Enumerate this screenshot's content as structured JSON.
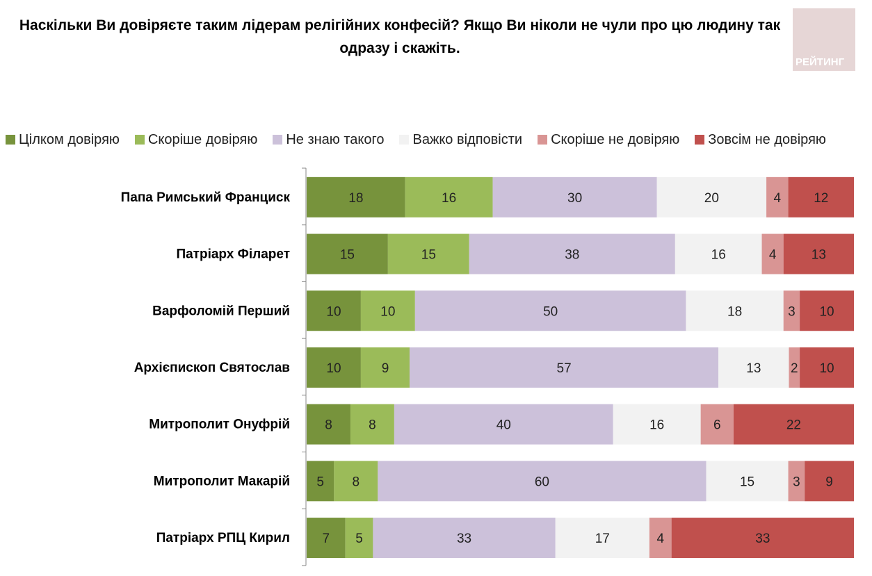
{
  "title": "Наскільки Ви довіряєте таким лідерам релігійних конфесій? Якщо Ви ніколи не чули про цю людину так одразу і скажіть.",
  "logo_text": "РЕЙТИНГ",
  "chart_data": {
    "type": "bar",
    "orientation": "horizontal",
    "stacked": true,
    "title": "Наскільки Ви довіряєте таким лідерам релігійних конфесій? Якщо Ви ніколи не чули про цю людину так одразу і скажіть.",
    "legend_position": "top",
    "categories": [
      "Папа Римський  Франциск",
      "Патріарх Філарет",
      "Варфоломій Перший",
      "Архієпископ Святослав",
      "Митрополит Онуфрій",
      "Митрополит Макарій",
      "Патріарх РПЦ Кирил"
    ],
    "series": [
      {
        "name": "Цілком довіряю",
        "color": "#77933c",
        "values": [
          18,
          15,
          10,
          10,
          8,
          5,
          7
        ]
      },
      {
        "name": "Скоріше довіряю",
        "color": "#9bbb59",
        "values": [
          16,
          15,
          10,
          9,
          8,
          8,
          5
        ]
      },
      {
        "name": "Не знаю такого",
        "color": "#ccc1da",
        "values": [
          30,
          38,
          50,
          57,
          40,
          60,
          33
        ]
      },
      {
        "name": "Важко відповісти",
        "color": "#f2f2f2",
        "values": [
          20,
          16,
          18,
          13,
          16,
          15,
          17
        ]
      },
      {
        "name": "Скоріше не довіряю",
        "color": "#d99594",
        "values": [
          4,
          4,
          3,
          2,
          6,
          3,
          4
        ]
      },
      {
        "name": "Зовсім не довіряю",
        "color": "#c0504d",
        "values": [
          12,
          13,
          10,
          10,
          22,
          9,
          33
        ]
      }
    ],
    "grid": false
  }
}
